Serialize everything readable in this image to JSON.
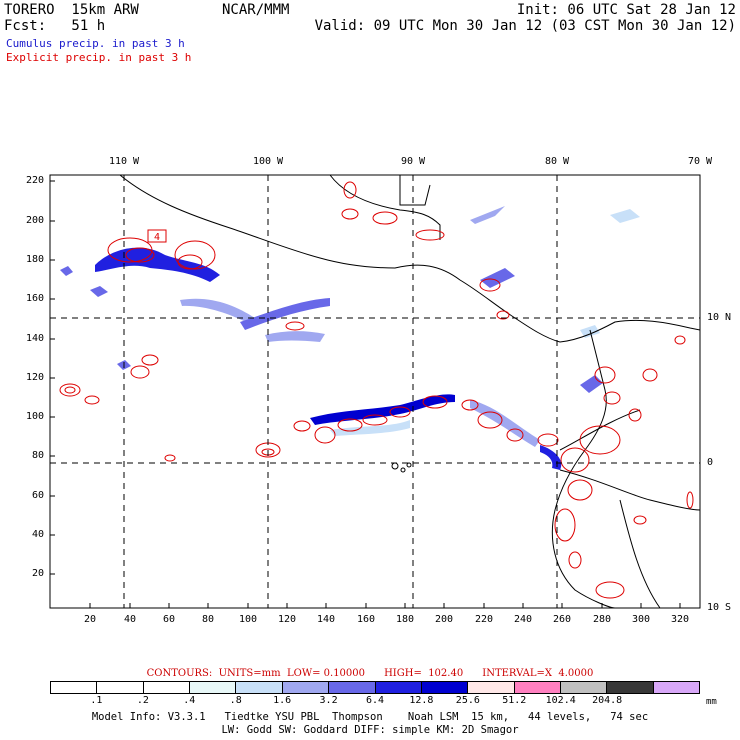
{
  "header": {
    "model": "TORERO  15km ARW",
    "center": "NCAR/MMM",
    "init": "Init: 06 UTC Sat 28 Jan 12",
    "fcst": "Fcst:   51 h",
    "valid": "Valid: 09 UTC Mon 30 Jan 12 (03 CST Mon 30 Jan 12)",
    "field1": "Cumulus precip. in past 3 h",
    "field2": "Explicit precip. in past 3 h",
    "field1_color": "#1a1acc",
    "field2_color": "#dd0000"
  },
  "map": {
    "y_ticks": [
      "220",
      "200",
      "180",
      "160",
      "140",
      "120",
      "100",
      "80",
      "60",
      "40",
      "20"
    ],
    "x_ticks": [
      "20",
      "40",
      "60",
      "80",
      "100",
      "120",
      "140",
      "160",
      "180",
      "200",
      "220",
      "240",
      "260",
      "280",
      "300",
      "320"
    ],
    "lon_labels": [
      "110 W",
      "100 W",
      "90 W",
      "80 W",
      "70 W"
    ],
    "lat_labels": [
      "10 N",
      "0",
      "10 S"
    ],
    "contour_label": "4"
  },
  "colorbar": {
    "info": "CONTOURS:  UNITS=mm  LOW= 0.10000      HIGH=  102.40      INTERVAL=X  4.0000",
    "labels": [
      ".1",
      ".2",
      ".4",
      ".8",
      "1.6",
      "3.2",
      "6.4",
      "12.8",
      "25.6",
      "51.2",
      "102.4",
      "204.8"
    ],
    "colors": [
      "#ffffff",
      "#ffffff",
      "#ffffff",
      "#e8f8f8",
      "#c8e0f8",
      "#a0a8f0",
      "#6868e8",
      "#2020e0",
      "#0000d0",
      "#ffe8e8",
      "#ff80c0",
      "#c0c0c0",
      "#383838",
      "#d8a8f8"
    ],
    "units": "mm"
  },
  "footer": {
    "line1": "Model Info: V3.3.1   Tiedtke YSU PBL  Thompson    Noah LSM  15 km,   44 levels,   74 sec",
    "line2": "LW: Godd SW: Goddard DIFF: simple KM: 2D Smagor"
  }
}
